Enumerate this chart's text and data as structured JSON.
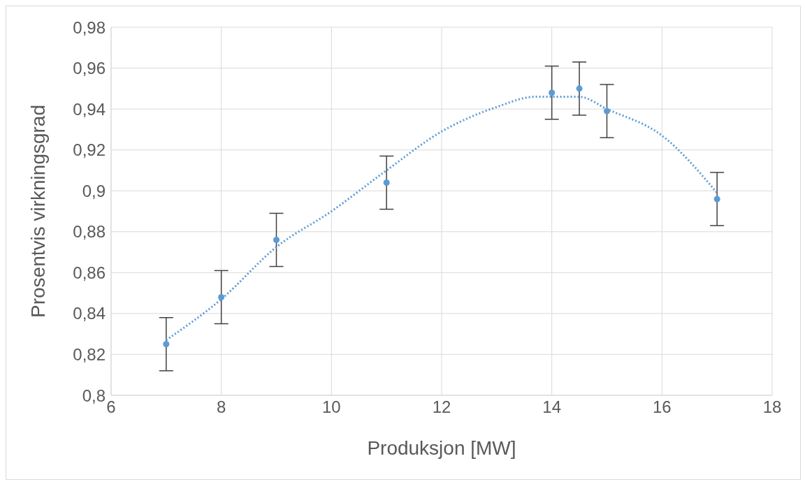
{
  "chart_data": {
    "type": "scatter",
    "xlabel": "Produksjon [MW]",
    "ylabel": "Prosentvis virkningsgrad",
    "xlim": [
      6,
      18
    ],
    "xticks": [
      6,
      8,
      10,
      12,
      14,
      16,
      18
    ],
    "ylim": [
      0.8,
      0.98
    ],
    "yticks": [
      {
        "value": 0.8,
        "label": "0,8"
      },
      {
        "value": 0.82,
        "label": "0,82"
      },
      {
        "value": 0.84,
        "label": "0,84"
      },
      {
        "value": 0.86,
        "label": "0,86"
      },
      {
        "value": 0.88,
        "label": "0,88"
      },
      {
        "value": 0.9,
        "label": "0,9"
      },
      {
        "value": 0.92,
        "label": "0,92"
      },
      {
        "value": 0.94,
        "label": "0,94"
      },
      {
        "value": 0.96,
        "label": "0,96"
      },
      {
        "value": 0.98,
        "label": "0,98"
      }
    ],
    "grid": true,
    "marker": "circle",
    "series": [
      {
        "type": "scatter",
        "color": "#5b9bd5",
        "x": [
          7,
          8,
          9,
          11,
          14,
          14.5,
          15,
          17
        ],
        "values": [
          0.825,
          0.848,
          0.876,
          0.904,
          0.948,
          0.95,
          0.939,
          0.896
        ],
        "errors": [
          0.013,
          0.013,
          0.013,
          0.013,
          0.013,
          0.013,
          0.013,
          0.013
        ]
      },
      {
        "type": "line",
        "color": "#5b9bd5",
        "line_style": "dotted",
        "marker": "none",
        "x": [
          7,
          8,
          9,
          10,
          11,
          12,
          13,
          13.7,
          14.5,
          15,
          16,
          17
        ],
        "values": [
          0.827,
          0.847,
          0.8725,
          0.89,
          0.91,
          0.929,
          0.941,
          0.946,
          0.946,
          0.94,
          0.927,
          0.899
        ]
      }
    ]
  }
}
